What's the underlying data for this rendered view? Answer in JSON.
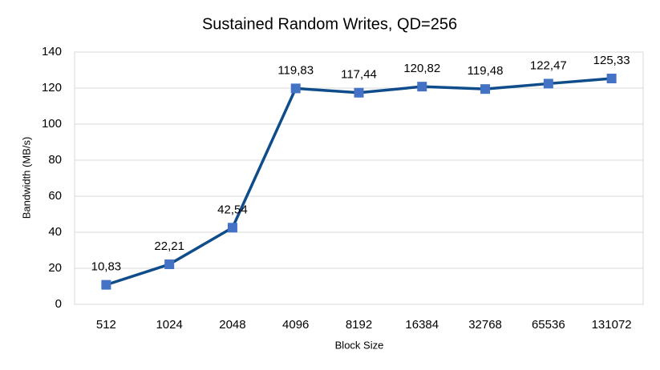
{
  "chart_data": {
    "type": "line",
    "title": "Sustained Random Writes, QD=256",
    "x_label": "Block Size",
    "y_label": "Bandwidth (MB/s)",
    "categories": [
      "512",
      "1024",
      "2048",
      "4096",
      "8192",
      "16384",
      "32768",
      "65536",
      "131072"
    ],
    "values": [
      10.83,
      22.21,
      42.54,
      119.83,
      117.44,
      120.82,
      119.48,
      122.47,
      125.33
    ],
    "value_labels": [
      "10,83",
      "22,21",
      "42,54",
      "119,83",
      "117,44",
      "120,82",
      "119,48",
      "122,47",
      "125,33"
    ],
    "color": "#0f4c8a",
    "marker_color": "#4472c4",
    "ylim": [
      0,
      140
    ],
    "yticks": [
      0,
      20,
      40,
      60,
      80,
      100,
      120,
      140
    ],
    "grid": true
  }
}
